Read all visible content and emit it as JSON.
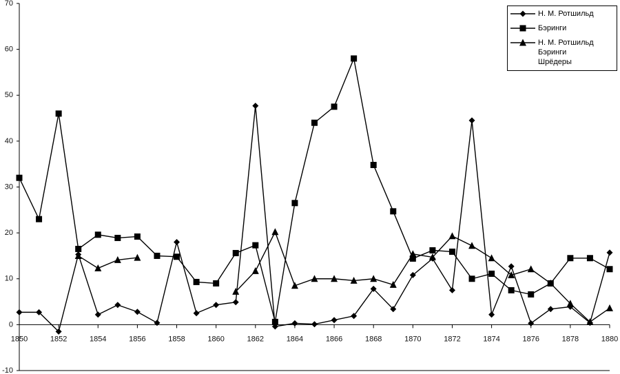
{
  "chart_data": {
    "type": "line",
    "x": [
      1850,
      1851,
      1852,
      1853,
      1854,
      1855,
      1856,
      1857,
      1858,
      1859,
      1860,
      1861,
      1862,
      1863,
      1864,
      1865,
      1866,
      1867,
      1868,
      1869,
      1870,
      1871,
      1872,
      1873,
      1874,
      1875,
      1876,
      1877,
      1878,
      1879,
      1880
    ],
    "xlim": [
      1850,
      1880
    ],
    "xticks": [
      1850,
      1852,
      1854,
      1856,
      1858,
      1860,
      1862,
      1864,
      1866,
      1868,
      1870,
      1872,
      1874,
      1876,
      1878,
      1880
    ],
    "ylim": [
      -10,
      70
    ],
    "yticks": [
      -10,
      0,
      10,
      20,
      30,
      40,
      50,
      60,
      70
    ],
    "legend": "upper right",
    "series": [
      {
        "name": "Н. М. Ротшильд",
        "color": "#000000",
        "marker": "diamond",
        "values": [
          2.7,
          2.7,
          -1.5,
          15.3,
          2.2,
          4.3,
          2.8,
          0.4,
          18,
          2.5,
          4.3,
          4.9,
          47.7,
          -0.4,
          0.3,
          0.1,
          1.0,
          1.9,
          7.8,
          3.4,
          10.8,
          14.4,
          7.5,
          44.5,
          2.2,
          12.7,
          0.3,
          3.4,
          3.9,
          0.4,
          15.7
        ]
      },
      {
        "name": "Бэринги",
        "color": "#000000",
        "marker": "square",
        "values": [
          32,
          23,
          46,
          16.5,
          19.6,
          18.9,
          19.2,
          15,
          14.8,
          9.3,
          9,
          15.6,
          17.3,
          0.6,
          26.5,
          44,
          47.5,
          58,
          34.8,
          24.7,
          14.4,
          16.2,
          15.9,
          10,
          11.1,
          7.5,
          6.6,
          9,
          14.5,
          14.5,
          12.1
        ]
      },
      {
        "name": "Н. М. Ротшильд\nБэринги\nШрёдеры",
        "color": "#000000",
        "marker": "triangle",
        "values": [
          null,
          null,
          null,
          15,
          12.3,
          14.1,
          14.6,
          null,
          null,
          null,
          null,
          7.2,
          11.7,
          20.2,
          8.5,
          10,
          10,
          9.6,
          10,
          8.7,
          15.4,
          14.7,
          19.3,
          17.2,
          14.5,
          10.8,
          12.1,
          9,
          4.6,
          0.6,
          3.6
        ]
      }
    ]
  }
}
